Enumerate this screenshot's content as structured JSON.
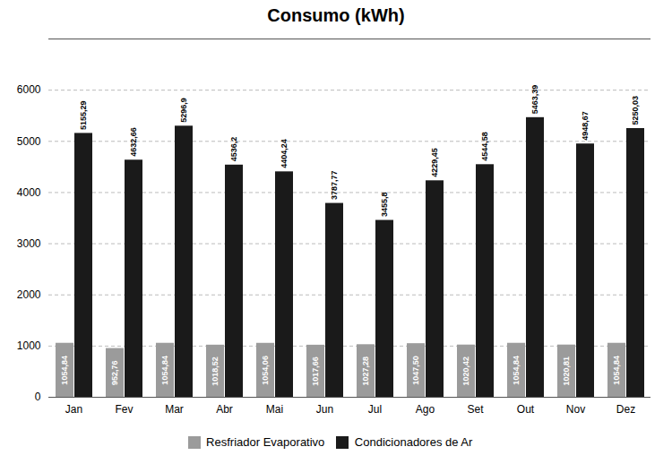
{
  "chart_data": {
    "type": "bar",
    "title": "Consumo (kWh)",
    "categories": [
      "Jan",
      "Fev",
      "Mar",
      "Abr",
      "Mai",
      "Jun",
      "Jul",
      "Ago",
      "Set",
      "Out",
      "Nov",
      "Dez"
    ],
    "series": [
      {
        "name": "Resfriador Evaporativo",
        "color": "#9b9b9b",
        "values": [
          1054.84,
          952.76,
          1054.84,
          1018.52,
          1054.06,
          1017.66,
          1027.28,
          1047.5,
          1020.42,
          1054.84,
          1020.81,
          1054.84
        ],
        "value_labels": [
          "1054,84",
          "952,76",
          "1054,84",
          "1018,52",
          "1054,06",
          "1017,66",
          "1027,28",
          "1047,50",
          "1020,42",
          "1054,84",
          "1020,81",
          "1054,84"
        ]
      },
      {
        "name": "Condicionadores de Ar",
        "color": "#1a1a1a",
        "values": [
          5155.29,
          4632.66,
          5296.9,
          4536.2,
          4404.24,
          3787.77,
          3455.8,
          4229.45,
          4544.58,
          5463.39,
          4948.67,
          5250.03
        ],
        "value_labels": [
          "5155,29",
          "4632,66",
          "5296,9",
          "4536,2",
          "4404,24",
          "3787,77",
          "3455,8",
          "4229,45",
          "4544,58",
          "5463,39",
          "4948,67",
          "5250,03"
        ]
      }
    ],
    "ylim": [
      0,
      7000
    ],
    "yticks": [
      0,
      1000,
      2000,
      3000,
      4000,
      5000,
      6000
    ],
    "grid": true,
    "legend": "bottom",
    "data_labels": true
  }
}
